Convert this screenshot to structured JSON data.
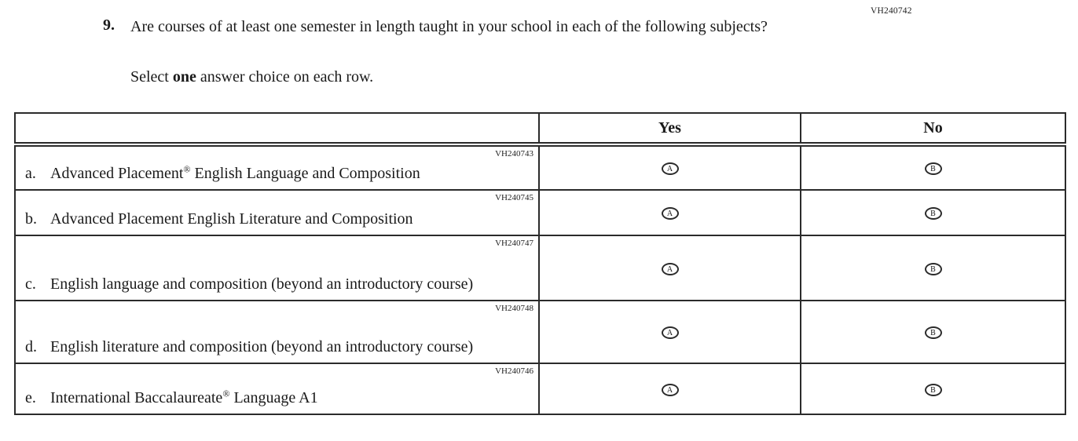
{
  "page": {
    "doc_code": "VH240742"
  },
  "question": {
    "number": "9.",
    "text": "Are courses of at least one semester in length taught in your school in each of the following subjects?",
    "instruction_pre": "Select ",
    "instruction_bold": "one",
    "instruction_post": " answer choice on each row."
  },
  "table": {
    "columns": {
      "label": "",
      "yes": "Yes",
      "no": "No"
    },
    "rows": [
      {
        "code": "VH240743",
        "letter": "a.",
        "label": "Advanced Placement® English Language and Composition",
        "options": {
          "yes": "A",
          "no": "B"
        }
      },
      {
        "code": "VH240745",
        "letter": "b.",
        "label": "Advanced Placement English Literature and Composition",
        "options": {
          "yes": "A",
          "no": "B"
        }
      },
      {
        "code": "VH240747",
        "letter": "c.",
        "label": "English language and composition (beyond an introductory course)",
        "options": {
          "yes": "A",
          "no": "B"
        }
      },
      {
        "code": "VH240748",
        "letter": "d.",
        "label": "English literature and composition (beyond an introductory course)",
        "options": {
          "yes": "A",
          "no": "B"
        }
      },
      {
        "code": "VH240746",
        "letter": "e.",
        "label": "International Baccalaureate® Language A1",
        "options": {
          "yes": "A",
          "no": "B"
        }
      }
    ]
  }
}
